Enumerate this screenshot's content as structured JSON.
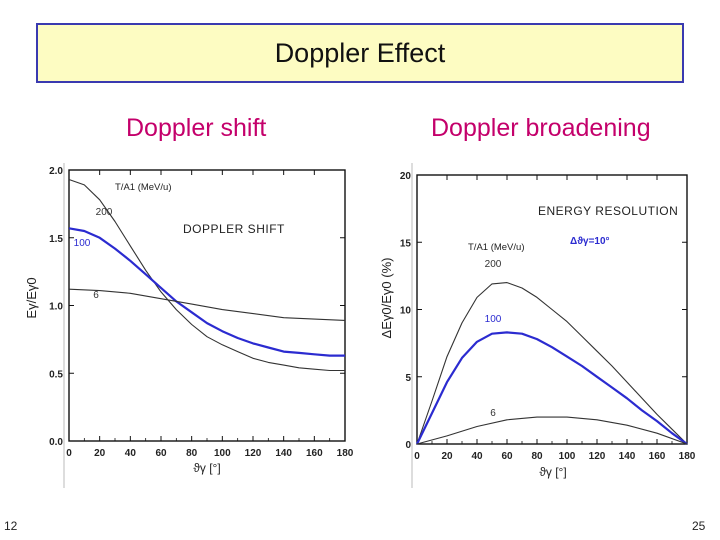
{
  "slide": {
    "title": "Doppler Effect",
    "heading_left": "Doppler shift",
    "heading_right": "Doppler broadening",
    "page_left": "12",
    "page_right": "25"
  },
  "colors": {
    "title_bg": "#fdfcc2",
    "title_border": "#3a3ab0",
    "heading": "#c4006b",
    "highlight_curve": "#2b2bd0"
  },
  "chart_data": [
    {
      "type": "line",
      "title": "DOPPLER SHIFT",
      "ylabel": "Eγ/Eγ0",
      "xlabel": "ϑγ [°]",
      "legend_title": "T/A1 (MeV/u)",
      "xlim": [
        0,
        180
      ],
      "ylim": [
        0,
        2.0
      ],
      "xticks": [
        0,
        20,
        40,
        60,
        80,
        100,
        120,
        140,
        160,
        180
      ],
      "yticks": [
        0.0,
        0.5,
        1.0,
        1.5,
        2.0
      ],
      "ytick_labels": [
        "0.0",
        "0.5",
        "1.0",
        "1.5",
        "2.0"
      ],
      "grid": false,
      "series": [
        {
          "name": "200",
          "color": "#333333",
          "x": [
            0,
            10,
            20,
            30,
            40,
            50,
            60,
            70,
            80,
            90,
            100,
            110,
            120,
            130,
            140,
            150,
            160,
            170,
            180
          ],
          "y": [
            1.93,
            1.89,
            1.78,
            1.62,
            1.44,
            1.26,
            1.1,
            0.97,
            0.86,
            0.77,
            0.71,
            0.66,
            0.61,
            0.58,
            0.56,
            0.54,
            0.53,
            0.52,
            0.52
          ]
        },
        {
          "name": "100",
          "color": "#2b2bd0",
          "x": [
            0,
            10,
            20,
            30,
            40,
            50,
            60,
            70,
            80,
            90,
            100,
            110,
            120,
            130,
            140,
            150,
            160,
            170,
            180
          ],
          "y": [
            1.57,
            1.55,
            1.5,
            1.42,
            1.33,
            1.23,
            1.13,
            1.03,
            0.95,
            0.87,
            0.81,
            0.76,
            0.72,
            0.69,
            0.66,
            0.65,
            0.64,
            0.63,
            0.63
          ]
        },
        {
          "name": "6",
          "color": "#333333",
          "x": [
            0,
            20,
            40,
            60,
            80,
            100,
            120,
            140,
            160,
            180
          ],
          "y": [
            1.12,
            1.11,
            1.09,
            1.05,
            1.01,
            0.97,
            0.94,
            0.91,
            0.9,
            0.89
          ]
        }
      ]
    },
    {
      "type": "line",
      "title": "ENERGY RESOLUTION",
      "ylabel": "ΔEγ0/Eγ0  (%)",
      "xlabel": "ϑγ [°]",
      "legend_title": "T/A1 (MeV/u)",
      "annotation": "Δϑγ=10°",
      "xlim": [
        0,
        180
      ],
      "ylim": [
        0,
        20
      ],
      "xticks": [
        0,
        20,
        40,
        60,
        80,
        100,
        120,
        140,
        160,
        180
      ],
      "yticks": [
        0,
        5,
        10,
        15,
        20
      ],
      "grid": false,
      "series": [
        {
          "name": "200",
          "color": "#333333",
          "x": [
            0,
            10,
            20,
            30,
            40,
            50,
            60,
            70,
            80,
            90,
            100,
            110,
            120,
            130,
            140,
            150,
            160,
            170,
            180
          ],
          "y": [
            0,
            3.2,
            6.5,
            9.0,
            10.9,
            11.9,
            12.0,
            11.6,
            10.9,
            10.0,
            9.1,
            8.0,
            6.9,
            5.8,
            4.6,
            3.4,
            2.2,
            1.1,
            0
          ]
        },
        {
          "name": "100",
          "color": "#2b2bd0",
          "x": [
            0,
            10,
            20,
            30,
            40,
            50,
            60,
            70,
            80,
            90,
            100,
            110,
            120,
            130,
            140,
            150,
            160,
            170,
            180
          ],
          "y": [
            0,
            2.3,
            4.6,
            6.4,
            7.6,
            8.2,
            8.3,
            8.2,
            7.8,
            7.2,
            6.5,
            5.8,
            5.0,
            4.2,
            3.4,
            2.5,
            1.7,
            0.8,
            0
          ]
        },
        {
          "name": "6",
          "color": "#333333",
          "x": [
            0,
            20,
            40,
            60,
            80,
            100,
            120,
            140,
            160,
            180
          ],
          "y": [
            0,
            0.6,
            1.3,
            1.8,
            2.0,
            2.0,
            1.8,
            1.4,
            0.8,
            0
          ]
        }
      ]
    }
  ]
}
